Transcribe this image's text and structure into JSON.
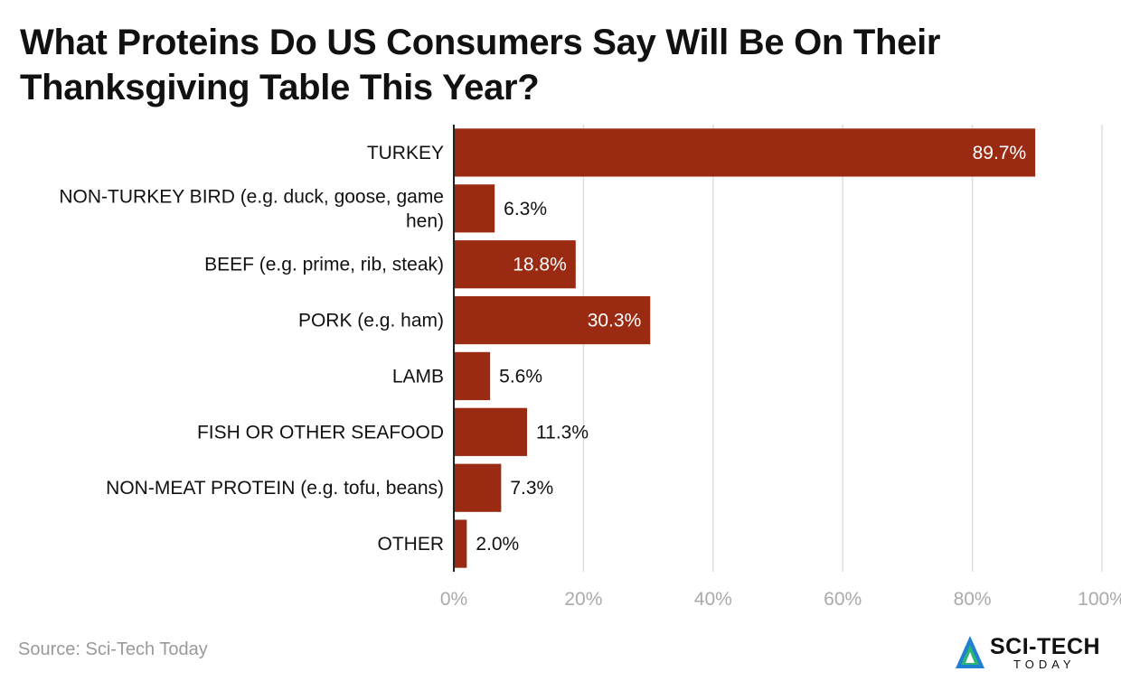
{
  "title": "What Proteins Do US Consumers Say Will Be On Their Thanksgiving Table This Year?",
  "source": "Source: Sci-Tech Today",
  "logo": {
    "name": "SCI-TECH",
    "sub": "TODAY"
  },
  "colors": {
    "bar": "#9b2a12",
    "grid": "#dedede",
    "axis": "#222222",
    "tick": "#aaaaaa",
    "text": "#111111"
  },
  "chart_data": {
    "type": "bar",
    "orientation": "horizontal",
    "categories": [
      "TURKEY",
      "NON-TURKEY BIRD (e.g. duck, goose, game hen)",
      "BEEF (e.g. prime, rib, steak)",
      "PORK (e.g. ham)",
      "LAMB",
      "FISH OR OTHER SEAFOOD",
      "NON-MEAT PROTEIN (e.g. tofu, beans)",
      "OTHER"
    ],
    "category_lines": [
      [
        "TURKEY"
      ],
      [
        "NON-TURKEY BIRD (e.g. duck, goose, game",
        "hen)"
      ],
      [
        "BEEF (e.g. prime, rib, steak)"
      ],
      [
        "PORK (e.g. ham)"
      ],
      [
        "LAMB"
      ],
      [
        "FISH OR OTHER SEAFOOD"
      ],
      [
        "NON-MEAT PROTEIN (e.g. tofu, beans)"
      ],
      [
        "OTHER"
      ]
    ],
    "values": [
      89.7,
      6.3,
      18.8,
      30.3,
      5.6,
      11.3,
      7.3,
      2.0
    ],
    "value_labels": [
      "89.7%",
      "6.3%",
      "18.8%",
      "30.3%",
      "5.6%",
      "11.3%",
      "7.3%",
      "2.0%"
    ],
    "xlim": [
      0,
      100
    ],
    "x_ticks": [
      0,
      20,
      40,
      60,
      80,
      100
    ],
    "x_tick_labels": [
      "0%",
      "20%",
      "40%",
      "60%",
      "80%",
      "100%"
    ],
    "xlabel": "",
    "ylabel": "",
    "grid": true
  }
}
